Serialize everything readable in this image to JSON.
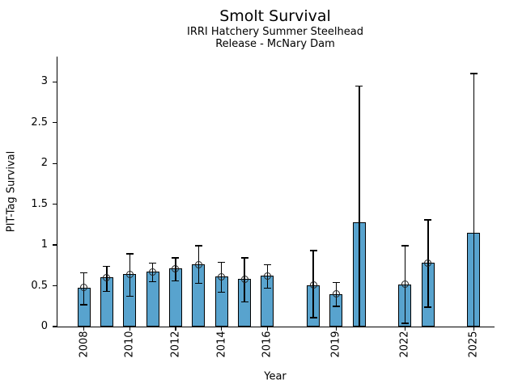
{
  "chart_data": {
    "type": "bar",
    "title": "Smolt Survival",
    "subtitle1": "IRRI Hatchery Summer Steelhead",
    "subtitle2": "Release - McNary Dam",
    "xlabel": "Year",
    "ylabel": "PIT-Tag Survival",
    "legend": "none",
    "grid": false,
    "bar_color": "#58A3CE",
    "bar_edge_color": "#000000",
    "error_bar_color": "#000000",
    "marker_style": "open-circle",
    "xlim": [
      2006.85,
      2025.9
    ],
    "ylim": [
      0,
      3.31
    ],
    "x_ticks": [
      2008,
      2010,
      2012,
      2014,
      2016,
      2019,
      2022,
      2025
    ],
    "y_ticks": [
      0,
      0.5,
      1,
      1.5,
      2,
      2.5,
      3
    ],
    "y_tick_labels": [
      "0",
      "0.5",
      "1",
      "1.5",
      "2",
      "2.5",
      "3"
    ],
    "bars": [
      {
        "year": 2008,
        "value": 0.48,
        "ci_low": 0.27,
        "ci_high": 0.66,
        "marker": true
      },
      {
        "year": 2009,
        "value": 0.6,
        "ci_low": 0.43,
        "ci_high": 0.74,
        "marker": true
      },
      {
        "year": 2010,
        "value": 0.64,
        "ci_low": 0.37,
        "ci_high": 0.89,
        "marker": true
      },
      {
        "year": 2011,
        "value": 0.67,
        "ci_low": 0.55,
        "ci_high": 0.78,
        "marker": true
      },
      {
        "year": 2012,
        "value": 0.71,
        "ci_low": 0.56,
        "ci_high": 0.84,
        "marker": true
      },
      {
        "year": 2013,
        "value": 0.76,
        "ci_low": 0.53,
        "ci_high": 0.99,
        "marker": true
      },
      {
        "year": 2014,
        "value": 0.61,
        "ci_low": 0.42,
        "ci_high": 0.79,
        "marker": true
      },
      {
        "year": 2015,
        "value": 0.58,
        "ci_low": 0.3,
        "ci_high": 0.84,
        "marker": true
      },
      {
        "year": 2016,
        "value": 0.62,
        "ci_low": 0.47,
        "ci_high": 0.76,
        "marker": true
      },
      {
        "year": 2018,
        "value": 0.51,
        "ci_low": 0.11,
        "ci_high": 0.93,
        "marker": true
      },
      {
        "year": 2019,
        "value": 0.4,
        "ci_low": 0.25,
        "ci_high": 0.54,
        "marker": true
      },
      {
        "year": 2020,
        "value": 1.28,
        "ci_low": 0.0,
        "ci_high": 2.95,
        "marker": false
      },
      {
        "year": 2022,
        "value": 0.52,
        "ci_low": 0.04,
        "ci_high": 0.99,
        "marker": true
      },
      {
        "year": 2023,
        "value": 0.78,
        "ci_low": 0.24,
        "ci_high": 1.31,
        "marker": true
      },
      {
        "year": 2025,
        "value": 1.15,
        "ci_low": 0.0,
        "ci_high": 3.1,
        "marker": false
      }
    ]
  }
}
